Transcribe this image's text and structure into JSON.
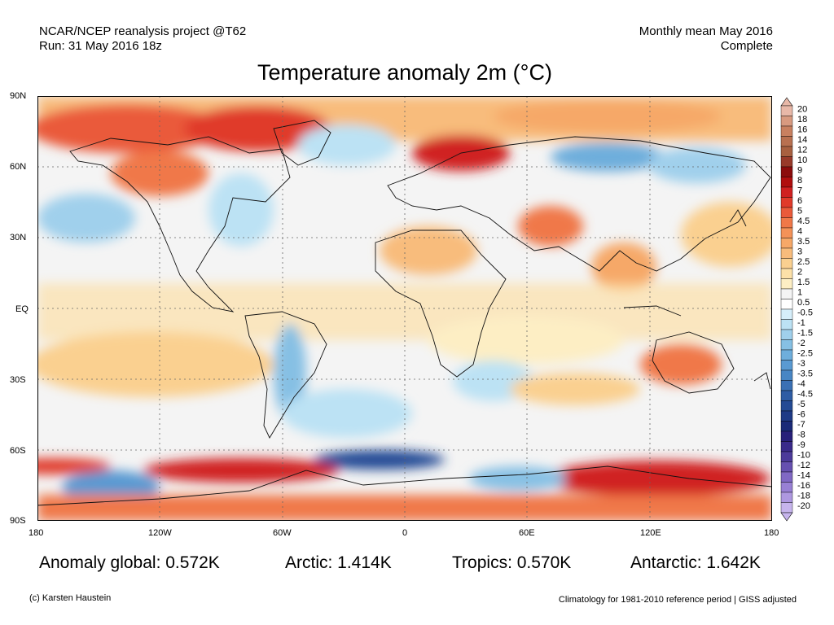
{
  "header": {
    "source_line1": "NCAR/NCEP reanalysis project @T62",
    "source_line2": "Run: 31 May 2016 18z",
    "period_line1": "Monthly mean May 2016",
    "period_line2": "Complete",
    "title": "Temperature anomaly 2m (°C)"
  },
  "axes": {
    "lat_labels": [
      "90N",
      "60N",
      "30N",
      "EQ",
      "30S",
      "60S",
      "90S"
    ],
    "lon_labels": [
      "180",
      "120W",
      "60W",
      "0",
      "60E",
      "120E",
      "180"
    ]
  },
  "colorbar": {
    "labels": [
      "20",
      "18",
      "16",
      "14",
      "12",
      "10",
      "9",
      "8",
      "7",
      "6",
      "5",
      "4.5",
      "4",
      "3.5",
      "3",
      "2.5",
      "2",
      "1.5",
      "1",
      "0.5",
      "-0.5",
      "-1",
      "-1.5",
      "-2",
      "-2.5",
      "-3",
      "-3.5",
      "-4",
      "-4.5",
      "-5",
      "-6",
      "-7",
      "-8",
      "-9",
      "-10",
      "-12",
      "-14",
      "-16",
      "-18",
      "-20"
    ],
    "colors": [
      "#e8b8a8",
      "#d89a80",
      "#c88060",
      "#b87050",
      "#a86040",
      "#983a2a",
      "#8c0c0c",
      "#b00e0e",
      "#d02020",
      "#e03a2a",
      "#ea5a3a",
      "#f07848",
      "#f49258",
      "#f6a868",
      "#f8bc7c",
      "#fad090",
      "#fce0a8",
      "#fdeec4",
      "#f4f4f4",
      "#ffffff",
      "#d6eefa",
      "#bce2f4",
      "#a0d0ec",
      "#86c0e4",
      "#6eaedc",
      "#5a9ad2",
      "#4886c4",
      "#3a70b4",
      "#2e5ca4",
      "#244a94",
      "#1e3a86",
      "#1a2a78",
      "#28207a",
      "#3a2a8a",
      "#4c3a9a",
      "#6650b0",
      "#8068c4",
      "#9880d4",
      "#ae98e0",
      "#c6b4ec"
    ]
  },
  "stats": {
    "global": "Anomaly global: 0.572K",
    "arctic": "Arctic: 1.414K",
    "tropics": "Tropics: 0.570K",
    "antarctic": "Antarctic: 1.642K"
  },
  "footer": {
    "credit": "(c) Karsten Haustein",
    "note": "Climatology for 1981-2010 reference period | GISS adjusted"
  }
}
